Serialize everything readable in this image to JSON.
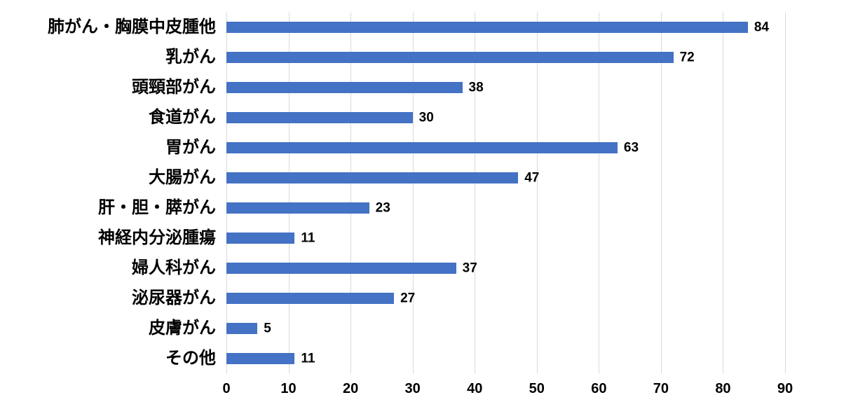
{
  "chart_data": {
    "type": "bar",
    "orientation": "horizontal",
    "title": "",
    "xlabel": "",
    "ylabel": "",
    "categories": [
      "肺がん・胸膜中皮腫他",
      "乳がん",
      "頭頸部がん",
      "食道がん",
      "胃がん",
      "大腸がん",
      "肝・胆・膵がん",
      "神経内分泌腫瘍",
      "婦人科がん",
      "泌尿器がん",
      "皮膚がん",
      "その他"
    ],
    "values": [
      84,
      72,
      38,
      30,
      63,
      47,
      23,
      11,
      37,
      27,
      5,
      11
    ],
    "xlim": [
      0,
      90
    ],
    "xticks": [
      0,
      10,
      20,
      30,
      40,
      50,
      60,
      70,
      80,
      90
    ],
    "grid": "vertical-only",
    "data_labels": true,
    "legend": "none",
    "colors": {
      "bar": "#4472C4",
      "gridline": "#D9D9D9",
      "text": "#000000",
      "background": "#FFFFFF"
    }
  }
}
